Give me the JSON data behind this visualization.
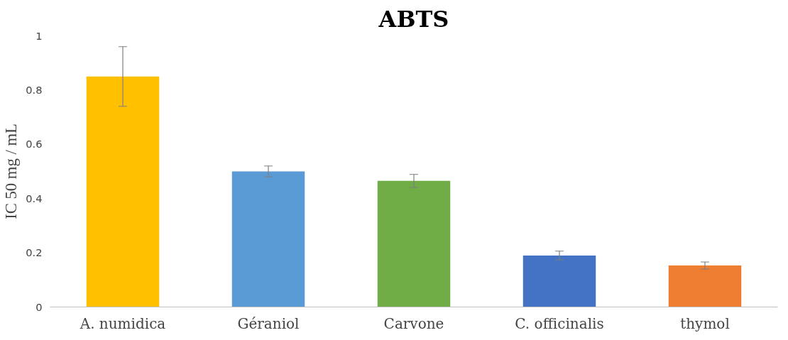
{
  "chart_data": {
    "type": "bar",
    "title": "ABTS",
    "ylabel": "IC 50 mg / mL",
    "categories": [
      "A. numidica",
      "Géraniol",
      "Carvone",
      "C. officinalis",
      "thymol"
    ],
    "values": [
      0.85,
      0.5,
      0.465,
      0.19,
      0.153
    ],
    "colors": [
      "#ffc000",
      "#5b9bd5",
      "#70ad47",
      "#4472c4",
      "#ed7d31"
    ],
    "errors": [
      0.11,
      0.02,
      0.024,
      0.016,
      0.013
    ],
    "ylim": [
      0,
      1
    ],
    "yticks": [
      0,
      0.2,
      0.4,
      0.6,
      0.8,
      1
    ],
    "grid": false
  }
}
